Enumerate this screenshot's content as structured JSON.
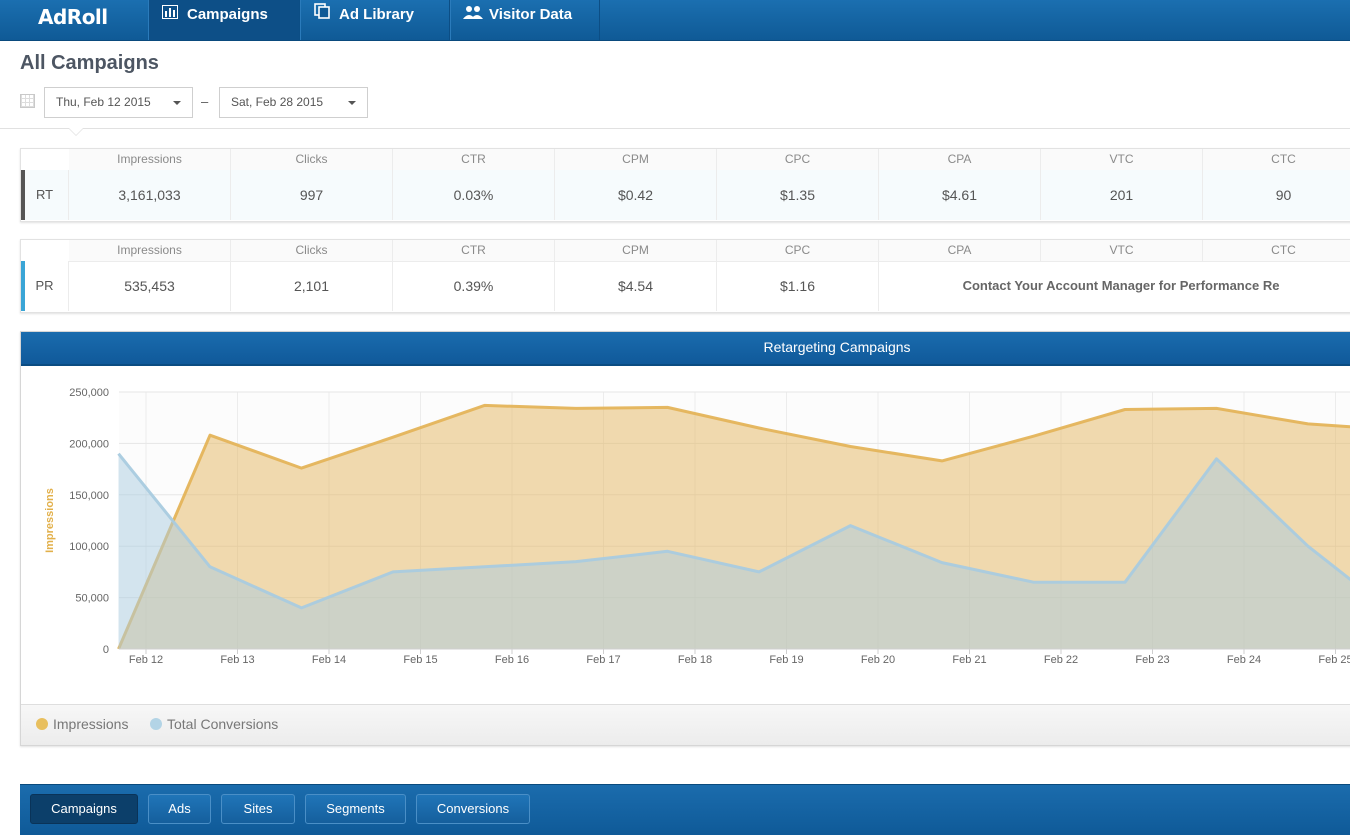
{
  "nav": {
    "logo": "AdRoll",
    "tabs": [
      {
        "label": "Campaigns",
        "icon": "bar-chart-icon"
      },
      {
        "label": "Ad Library",
        "icon": "copy-icon"
      },
      {
        "label": "Visitor Data",
        "icon": "users-icon"
      }
    ]
  },
  "page": {
    "title": "All Campaigns",
    "date_start": "Thu, Feb 12 2015",
    "date_end": "Sat, Feb 28 2015",
    "date_separator": "–"
  },
  "stats": {
    "columns": [
      "Impressions",
      "Clicks",
      "CTR",
      "CPM",
      "CPC",
      "CPA",
      "VTC",
      "CTC"
    ],
    "rt": {
      "label": "RT",
      "accent": "#555555",
      "values": [
        "3,161,033",
        "997",
        "0.03%",
        "$0.42",
        "$1.35",
        "$4.61",
        "201",
        "90"
      ]
    },
    "pr": {
      "label": "PR",
      "accent": "#3aa5d6",
      "values": [
        "535,453",
        "2,101",
        "0.39%",
        "$4.54",
        "$1.16"
      ],
      "contact_message": "Contact Your Account Manager for Performance Re"
    }
  },
  "chart_data": {
    "type": "area",
    "title": "Retargeting Campaigns",
    "ylabel": "Impressions",
    "ylim": [
      0,
      250000
    ],
    "yticks": [
      0,
      50000,
      100000,
      150000,
      200000,
      250000
    ],
    "ytick_labels": [
      "0",
      "50,000",
      "100,000",
      "150,000",
      "200,000",
      "250,000"
    ],
    "x_labels": [
      "Feb 12",
      "Feb 13",
      "Feb 14",
      "Feb 15",
      "Feb 16",
      "Feb 17",
      "Feb 18",
      "Feb 19",
      "Feb 20",
      "Feb 21",
      "Feb 22",
      "Feb 23",
      "Feb 24",
      "Feb 25"
    ],
    "grid": true,
    "legend_position": "bottom-left",
    "series": [
      {
        "name": "Impressions",
        "color": "#e4b45a",
        "points": [
          [
            11.7,
            0
          ],
          [
            12.7,
            208000
          ],
          [
            13.7,
            176000
          ],
          [
            14.7,
            206000
          ],
          [
            15.7,
            237000
          ],
          [
            16.7,
            234000
          ],
          [
            17.7,
            235000
          ],
          [
            18.7,
            215000
          ],
          [
            19.7,
            197000
          ],
          [
            20.7,
            183000
          ],
          [
            21.7,
            207000
          ],
          [
            22.7,
            233000
          ],
          [
            23.7,
            234000
          ],
          [
            24.7,
            219000
          ],
          [
            25.2,
            216000
          ]
        ]
      },
      {
        "name": "Total Conversions",
        "color": "#a9cbdf",
        "points": [
          [
            11.7,
            190000
          ],
          [
            12.7,
            80000
          ],
          [
            13.7,
            40000
          ],
          [
            14.7,
            75000
          ],
          [
            15.7,
            80000
          ],
          [
            16.7,
            85000
          ],
          [
            17.7,
            95000
          ],
          [
            18.7,
            75000
          ],
          [
            19.7,
            120000
          ],
          [
            20.7,
            84000
          ],
          [
            21.7,
            65000
          ],
          [
            22.7,
            65000
          ],
          [
            23.7,
            185000
          ],
          [
            24.7,
            100000
          ],
          [
            25.2,
            65000
          ]
        ]
      }
    ]
  },
  "legend": {
    "items": [
      {
        "label": "Impressions",
        "color": "#e8bf5e"
      },
      {
        "label": "Total Conversions",
        "color": "#b3d4e6"
      }
    ]
  },
  "bottom_tabs": [
    "Campaigns",
    "Ads",
    "Sites",
    "Segments",
    "Conversions"
  ]
}
